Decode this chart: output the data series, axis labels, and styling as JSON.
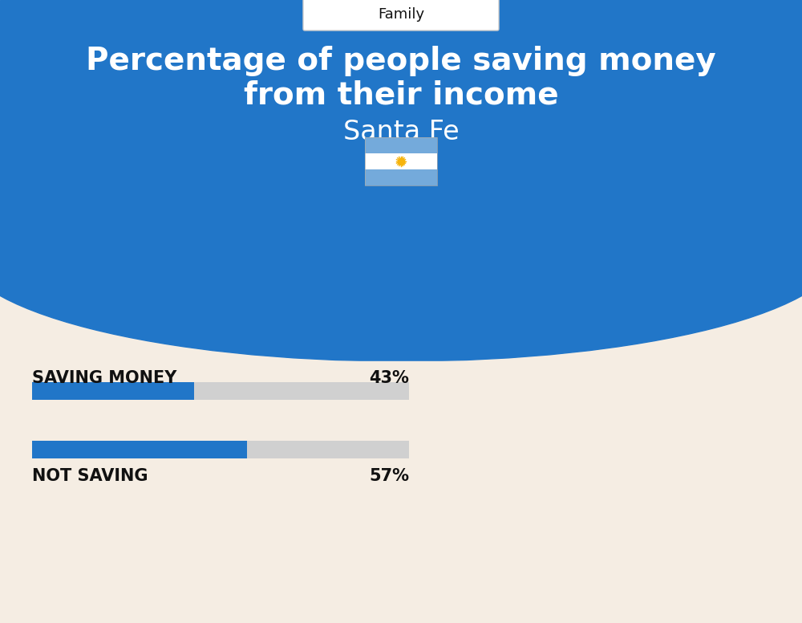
{
  "title_line1": "Percentage of people saving money",
  "title_line2": "from their income",
  "subtitle": "Santa Fe",
  "category_label": "Family",
  "bar1_label": "SAVING MONEY",
  "bar1_value": 43,
  "bar1_pct": "43%",
  "bar2_label": "NOT SAVING",
  "bar2_value": 57,
  "bar2_pct": "57%",
  "bar_color": "#2176C8",
  "bar_bg_color": "#D0D0D0",
  "header_bg_color": "#2176C8",
  "page_bg_color": "#F5EDE3",
  "title_color": "#FFFFFF",
  "subtitle_color": "#FFFFFF",
  "label_color": "#111111",
  "family_box_color": "#FFFFFF",
  "family_text_color": "#111111",
  "bar1_bar_width": 0.43,
  "bar2_bar_width": 0.57
}
